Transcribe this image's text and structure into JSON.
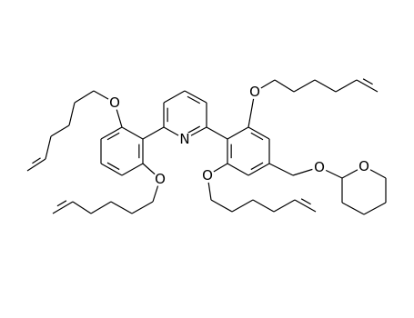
{
  "atoms": [
    "N",
    "O",
    "O",
    "O",
    "O",
    "O",
    "O"
  ]
}
